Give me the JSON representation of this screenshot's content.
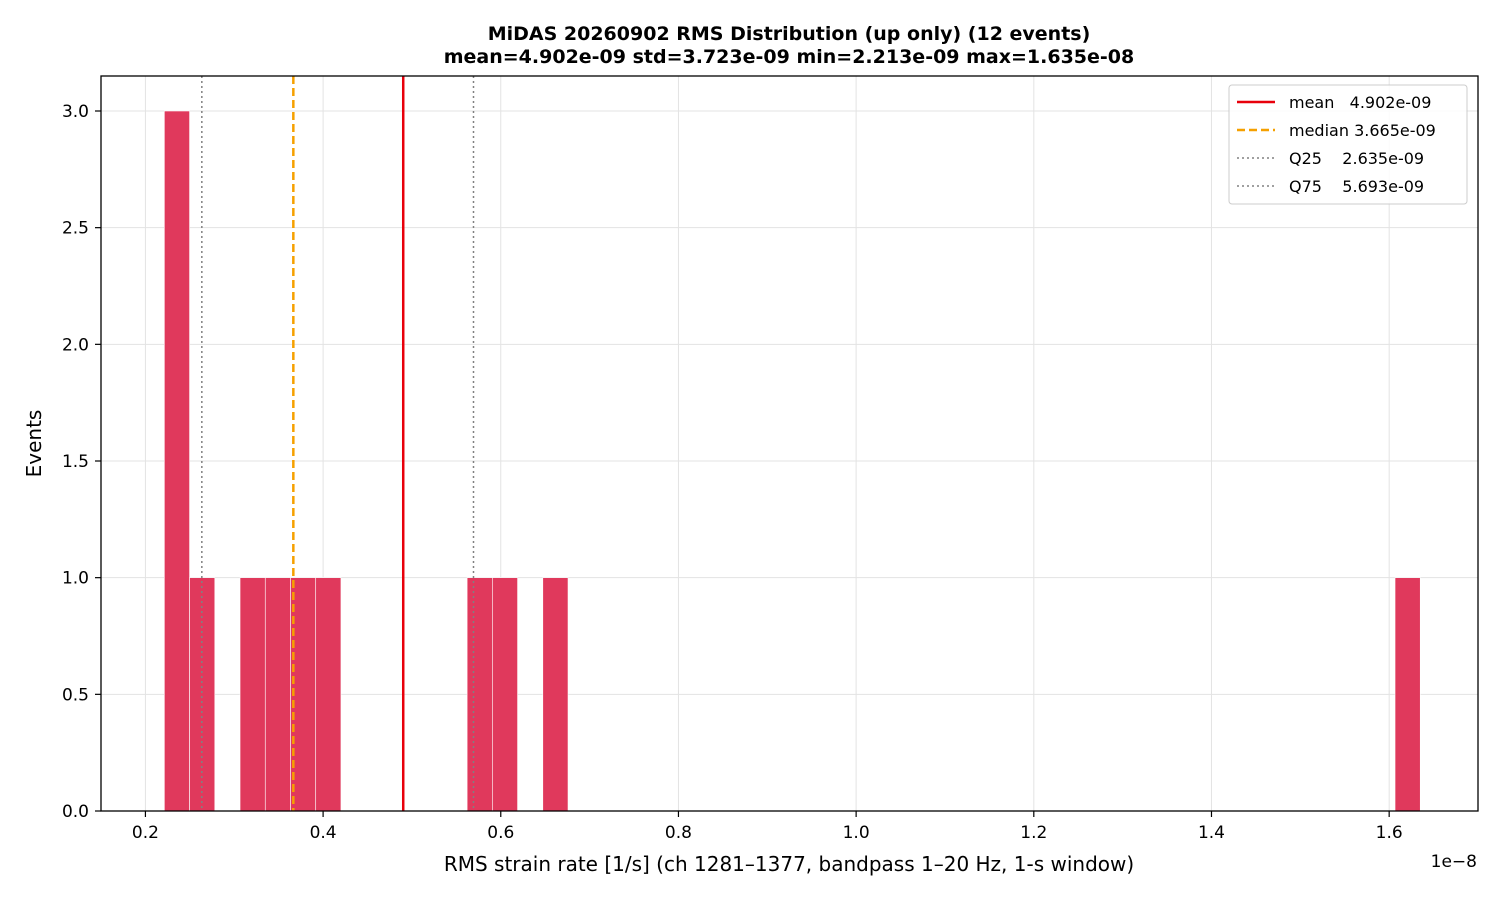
{
  "chart_data": {
    "type": "bar",
    "title_lines": [
      "MiDAS 20260902  RMS Distribution  (up only)  (12 events)",
      "mean=4.902e-09  std=3.723e-09  min=2.213e-09  max=1.635e-08"
    ],
    "xlabel": "RMS strain rate [1/s]  (ch 1281–1377, bandpass 1–20 Hz, 1-s window)",
    "ylabel": "Events",
    "x_offset_label": "1e−8",
    "xlim": [
      0.15,
      1.7
    ],
    "ylim": [
      0.0,
      3.15
    ],
    "grid": true,
    "legend_position": "upper right",
    "bar_color": "#e0395c",
    "x_ticks": [
      0.2,
      0.4,
      0.6,
      0.8,
      1.0,
      1.2,
      1.4,
      1.6
    ],
    "x_tick_labels": [
      "0.2",
      "0.4",
      "0.6",
      "0.8",
      "1.0",
      "1.2",
      "1.4",
      "1.6"
    ],
    "y_ticks": [
      0.0,
      0.5,
      1.0,
      1.5,
      2.0,
      2.5,
      3.0
    ],
    "y_tick_labels": [
      "0.0",
      "0.5",
      "1.0",
      "1.5",
      "2.0",
      "2.5",
      "3.0"
    ],
    "bins": [
      {
        "start": 0.2213,
        "end": 0.2497,
        "count": 3
      },
      {
        "start": 0.2497,
        "end": 0.2781,
        "count": 1
      },
      {
        "start": 0.3065,
        "end": 0.3349,
        "count": 1
      },
      {
        "start": 0.3349,
        "end": 0.3633,
        "count": 1
      },
      {
        "start": 0.3633,
        "end": 0.3917,
        "count": 1
      },
      {
        "start": 0.3917,
        "end": 0.4201,
        "count": 1
      },
      {
        "start": 0.5621,
        "end": 0.5905,
        "count": 1
      },
      {
        "start": 0.5905,
        "end": 0.6189,
        "count": 1
      },
      {
        "start": 0.6473,
        "end": 0.6757,
        "count": 1
      },
      {
        "start": 1.6066,
        "end": 1.635,
        "count": 1
      }
    ],
    "reference_lines": [
      {
        "name": "mean",
        "value": 0.4902,
        "legend": "mean   4.902e-09",
        "color": "#e8000b",
        "style": "solid"
      },
      {
        "name": "median",
        "value": 0.3665,
        "legend": "median 3.665e-09",
        "color": "#f5a000",
        "style": "dashed"
      },
      {
        "name": "q25",
        "value": 0.2635,
        "legend": "Q25    2.635e-09",
        "color": "#808080",
        "style": "dotted"
      },
      {
        "name": "q75",
        "value": 0.5693,
        "legend": "Q75    5.693e-09",
        "color": "#808080",
        "style": "dotted"
      }
    ]
  }
}
